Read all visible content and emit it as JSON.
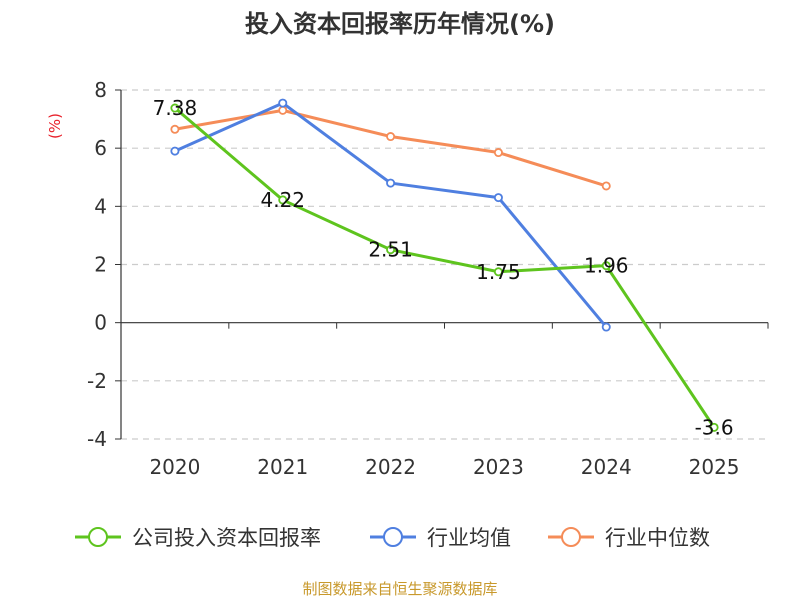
{
  "chart_data": {
    "type": "line",
    "title": "投入资本回报率历年情况(%)",
    "ylabel": "(%)",
    "xlabel": "",
    "categories": [
      "2020",
      "2021",
      "2022",
      "2023",
      "2024",
      "2025"
    ],
    "yticks": [
      "8",
      "6",
      "4",
      "2",
      "0",
      "-2",
      "-4"
    ],
    "ylim": [
      -4,
      8
    ],
    "grid": true,
    "legend_position": "bottom",
    "series": [
      {
        "name": "公司投入资本回报率",
        "color": "#5ec41e",
        "values": [
          7.38,
          4.22,
          2.51,
          1.75,
          1.96,
          -3.6
        ],
        "labels": [
          "7.38",
          "4.22",
          "2.51",
          "1.75",
          "1.96",
          "-3.6"
        ]
      },
      {
        "name": "行业均值",
        "color": "#4f7fe0",
        "values": [
          5.9,
          7.55,
          4.8,
          4.3,
          -0.15,
          null
        ]
      },
      {
        "name": "行业中位数",
        "color": "#f58c58",
        "values": [
          6.65,
          7.3,
          6.4,
          5.85,
          4.7,
          null
        ]
      }
    ]
  },
  "source": "制图数据来自恒生聚源数据库"
}
